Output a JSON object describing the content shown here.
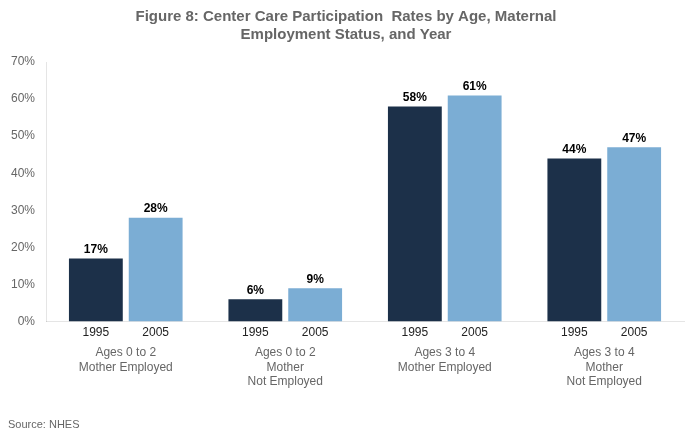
{
  "chart_data": {
    "type": "bar",
    "title": "Figure 8: Center Care Participation  Rates by Age, Maternal\nEmployment Status, and Year",
    "annotations": [
      "Source: NHES"
    ],
    "categories": [
      [
        "Ages 0 to 2",
        "Mother Employed"
      ],
      [
        "Ages 0 to 2",
        "Mother",
        "Not Employed"
      ],
      [
        "Ages 3 to 4",
        "Mother Employed"
      ],
      [
        "Ages 3 to 4",
        "Mother",
        "Not Employed"
      ]
    ],
    "series": [
      {
        "name": "1995",
        "color": "#1C3049",
        "values": [
          17,
          6,
          58,
          44
        ],
        "value_labels": [
          "17%",
          "6%",
          "58%",
          "44%"
        ]
      },
      {
        "name": "2005",
        "color": "#7BADD4",
        "values": [
          28,
          9,
          61,
          47
        ],
        "value_labels": [
          "28%",
          "9%",
          "61%",
          "47%"
        ]
      }
    ],
    "ylim": [
      0,
      70
    ],
    "yticks": [
      {
        "value": 0,
        "label": "0%"
      },
      {
        "value": 10,
        "label": "10%"
      },
      {
        "value": 20,
        "label": "20%"
      },
      {
        "value": 30,
        "label": "30%"
      },
      {
        "value": 40,
        "label": "40%"
      },
      {
        "value": 50,
        "label": "50%"
      },
      {
        "value": 60,
        "label": "60%"
      },
      {
        "value": 70,
        "label": "70%"
      }
    ],
    "grid": false,
    "data_labels": true
  }
}
